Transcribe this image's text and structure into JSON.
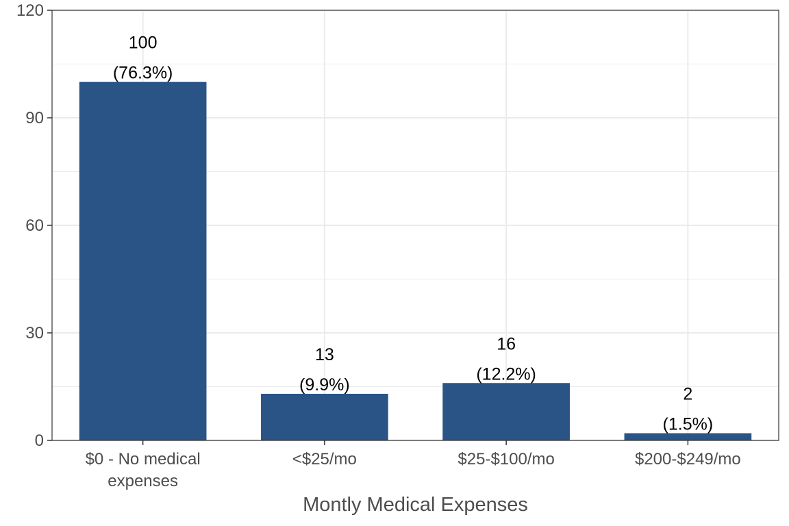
{
  "chart_data": {
    "type": "bar",
    "title": "",
    "xlabel": "Montly Medical Expenses",
    "ylabel": "",
    "categories": [
      [
        "$0 - No medical",
        "expenses"
      ],
      [
        "<$25/mo"
      ],
      [
        "$25-$100/mo"
      ],
      [
        "$200-$249/mo"
      ]
    ],
    "values": [
      100,
      13,
      16,
      2
    ],
    "value_labels": [
      "100",
      "13",
      "16",
      "2"
    ],
    "percent_labels": [
      "(76.3%)",
      "(9.9%)",
      "(12.2%)",
      "(1.5%)"
    ],
    "ylim": [
      0,
      120
    ],
    "yticks": [
      0,
      30,
      60,
      90,
      120
    ],
    "grid": true,
    "legend": "none",
    "colors": {
      "bar": "#2a5386",
      "grid": "#ebebeb",
      "panel_border": "#333333",
      "tick_text": "#4d4d4d"
    }
  }
}
